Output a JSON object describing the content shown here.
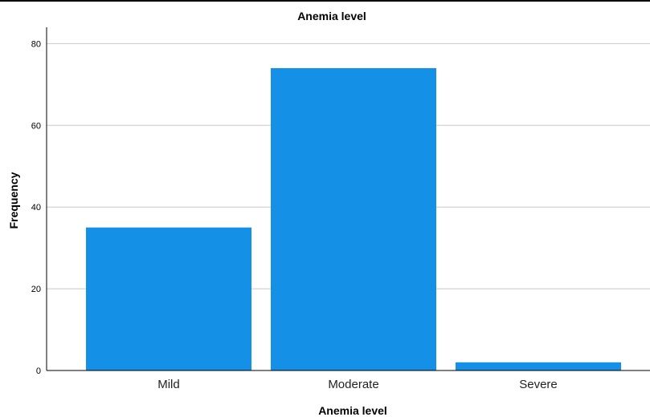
{
  "chart_data": {
    "type": "bar",
    "title": "Anemia level",
    "xlabel": "Anemia level",
    "ylabel": "Frequency",
    "categories": [
      "Mild",
      "Moderate",
      "Severe"
    ],
    "values": [
      35,
      74,
      2
    ],
    "ylim": [
      0,
      84
    ],
    "yticks": [
      "0",
      "20",
      "40",
      "60",
      "80"
    ],
    "grid": true,
    "bar_color": "#1490E6"
  }
}
